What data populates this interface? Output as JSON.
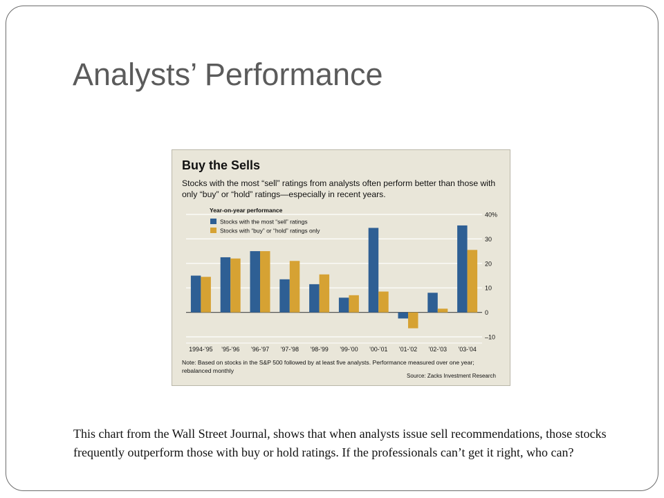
{
  "slide": {
    "title": "Analysts’ Performance",
    "body_text": "This chart from the Wall Street Journal, shows that when analysts issue sell recommendations, those stocks frequently outperform those with buy or hold ratings.  If the professionals can’t get it right, who can?"
  },
  "chart_data": {
    "type": "bar",
    "title": "Buy the Sells",
    "subtitle": "Stocks with the most “sell” ratings from analysts often perform better than those with only “buy” or “hold” ratings—especially in recent years.",
    "legend_title": "Year-on-year performance",
    "legend_position": "top-left",
    "categories": [
      "1994-’95",
      "’95-’96",
      "’96-’97",
      "’97-’98",
      "’98-’99",
      "’99-’00",
      "’00-’01",
      "’01-’02",
      "’02-’03",
      "’03-’04"
    ],
    "series": [
      {
        "name": "Stocks with the most “sell” ratings",
        "color": "#2e5f94",
        "values": [
          15,
          22.5,
          25,
          13.5,
          11.5,
          6,
          34.5,
          -2.5,
          8,
          35.5
        ]
      },
      {
        "name": "Stocks with “buy” or “hold” ratings only",
        "color": "#d6a233",
        "values": [
          14.5,
          22,
          25,
          21,
          15.5,
          7,
          8.5,
          -6.5,
          1.5,
          25.5
        ]
      }
    ],
    "ylim": [
      -10,
      40
    ],
    "yticks": [
      "40%",
      "30",
      "20",
      "10",
      "0",
      "–10"
    ],
    "ytick_values": [
      40,
      30,
      20,
      10,
      0,
      -10
    ],
    "y_axis_side": "right",
    "grid": true,
    "note": "Note: Based on stocks in the S&P 500 followed by at least five analysts. Performance measured over one year; rebalanced monthly",
    "source": "Source: Zacks Investment Research"
  }
}
